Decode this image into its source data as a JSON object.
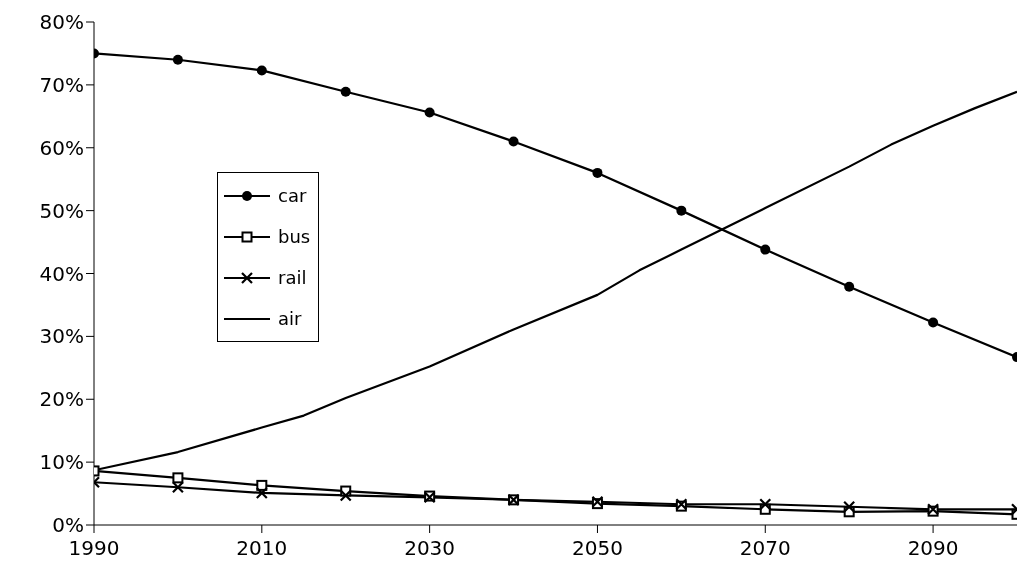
{
  "chart_data": {
    "type": "line",
    "xlim": [
      1990,
      2100
    ],
    "xticks": [
      1990,
      2010,
      2030,
      2050,
      2070,
      2090
    ],
    "ylim": [
      0,
      80
    ],
    "yticks": [
      {
        "value": 0,
        "label": "0%"
      },
      {
        "value": 10,
        "label": "10%"
      },
      {
        "value": 20,
        "label": "20%"
      },
      {
        "value": 30,
        "label": "30%"
      },
      {
        "value": 40,
        "label": "40%"
      },
      {
        "value": 50,
        "label": "50%"
      },
      {
        "value": 60,
        "label": "60%"
      },
      {
        "value": 70,
        "label": "70%"
      },
      {
        "value": 80,
        "label": "80%"
      }
    ],
    "legend": "left",
    "line_style": "solid",
    "series": [
      {
        "name": "car",
        "color": "#000000",
        "marker": "circle",
        "x": [
          1990,
          2000,
          2010,
          2020,
          2030,
          2040,
          2050,
          2060,
          2070,
          2080,
          2090,
          2100
        ],
        "values": [
          75,
          74,
          72.3,
          68.9,
          65.6,
          61,
          56,
          50,
          43.8,
          37.9,
          32.2,
          26.7
        ]
      },
      {
        "name": "bus",
        "color": "#000000",
        "marker": "square",
        "x": [
          1990,
          2000,
          2010,
          2020,
          2030,
          2040,
          2050,
          2060,
          2070,
          2080,
          2090,
          2100
        ],
        "values": [
          8.6,
          7.5,
          6.3,
          5.4,
          4.6,
          4,
          3.4,
          3,
          2.5,
          2.1,
          2.2,
          1.7
        ]
      },
      {
        "name": "rail",
        "color": "#000000",
        "marker": "cross",
        "x": [
          1990,
          2000,
          2010,
          2020,
          2030,
          2040,
          2050,
          2060,
          2070,
          2080,
          2090,
          2100
        ],
        "values": [
          6.8,
          6,
          5.1,
          4.7,
          4.4,
          4,
          3.7,
          3.3,
          3.3,
          2.9,
          2.5,
          2.5
        ]
      },
      {
        "name": "air",
        "color": "#000000",
        "marker": "none",
        "x": [
          1990,
          2000,
          2010,
          2015,
          2020,
          2030,
          2040,
          2050,
          2055,
          2060,
          2070,
          2080,
          2085,
          2090,
          2095,
          2100
        ],
        "values": [
          8.7,
          11.6,
          15.5,
          17.4,
          20.2,
          25.2,
          31.1,
          36.6,
          40.5,
          43.8,
          50.4,
          57,
          60.5,
          63.5,
          66.3,
          68.9
        ]
      }
    ]
  }
}
